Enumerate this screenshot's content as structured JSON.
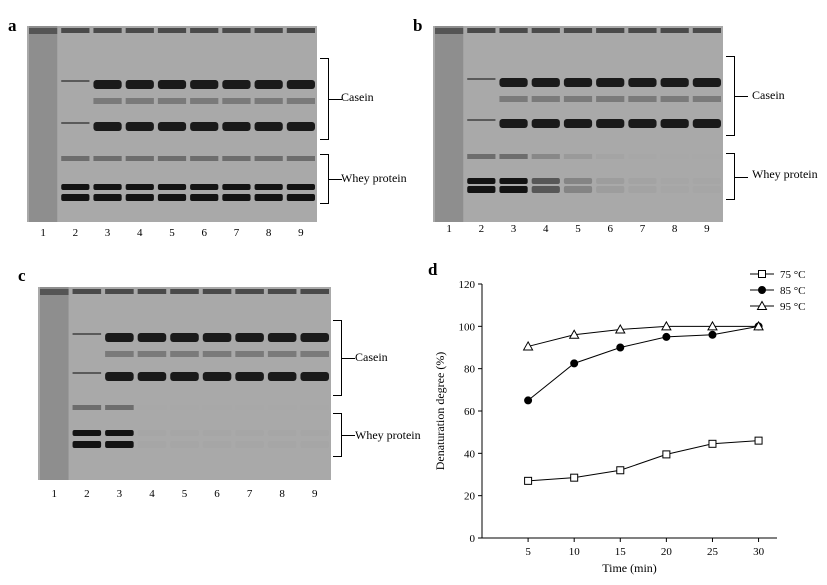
{
  "panels": {
    "a": {
      "label": "a",
      "lanes": [
        "1",
        "2",
        "3",
        "4",
        "5",
        "6",
        "7",
        "8",
        "9"
      ],
      "casein_label": "Casein",
      "whey_label": "Whey protein",
      "whey_intensity": [
        0,
        1,
        1,
        1,
        1,
        1,
        1,
        1,
        1
      ]
    },
    "b": {
      "label": "b",
      "lanes": [
        "1",
        "2",
        "3",
        "4",
        "5",
        "6",
        "7",
        "8",
        "9"
      ],
      "casein_label": "Casein",
      "whey_label": "Whey protein",
      "whey_intensity": [
        0,
        1,
        1,
        0.55,
        0.25,
        0.08,
        0.04,
        0.02,
        0.02
      ]
    },
    "c": {
      "label": "c",
      "lanes": [
        "1",
        "2",
        "3",
        "4",
        "5",
        "6",
        "7",
        "8",
        "9"
      ],
      "casein_label": "Casein",
      "whey_label": "Whey protein",
      "whey_intensity": [
        0,
        1,
        1,
        0.02,
        0.02,
        0.02,
        0.02,
        0.02,
        0.02
      ]
    },
    "d": {
      "label": "d"
    }
  },
  "chart_data": {
    "type": "line",
    "xlabel": "Time (min)",
    "ylabel": "Denaturation degree (%)",
    "x": [
      5,
      10,
      15,
      20,
      25,
      30
    ],
    "xlim": [
      0,
      32
    ],
    "ylim": [
      0,
      120
    ],
    "xticks": [
      "5",
      "10",
      "15",
      "20",
      "25",
      "30"
    ],
    "yticks": [
      "0",
      "20",
      "40",
      "60",
      "80",
      "100",
      "120"
    ],
    "legend_position": "top-right",
    "series": [
      {
        "name": "75 °C",
        "marker": "square-open",
        "values": [
          27,
          28.5,
          32,
          39.5,
          44.5,
          46
        ]
      },
      {
        "name": "85 °C",
        "marker": "circle-filled",
        "values": [
          65,
          82.5,
          90,
          95,
          96,
          100
        ]
      },
      {
        "name": "95 °C",
        "marker": "triangle-open",
        "values": [
          90.5,
          96,
          98.5,
          100,
          100,
          100
        ]
      }
    ]
  }
}
